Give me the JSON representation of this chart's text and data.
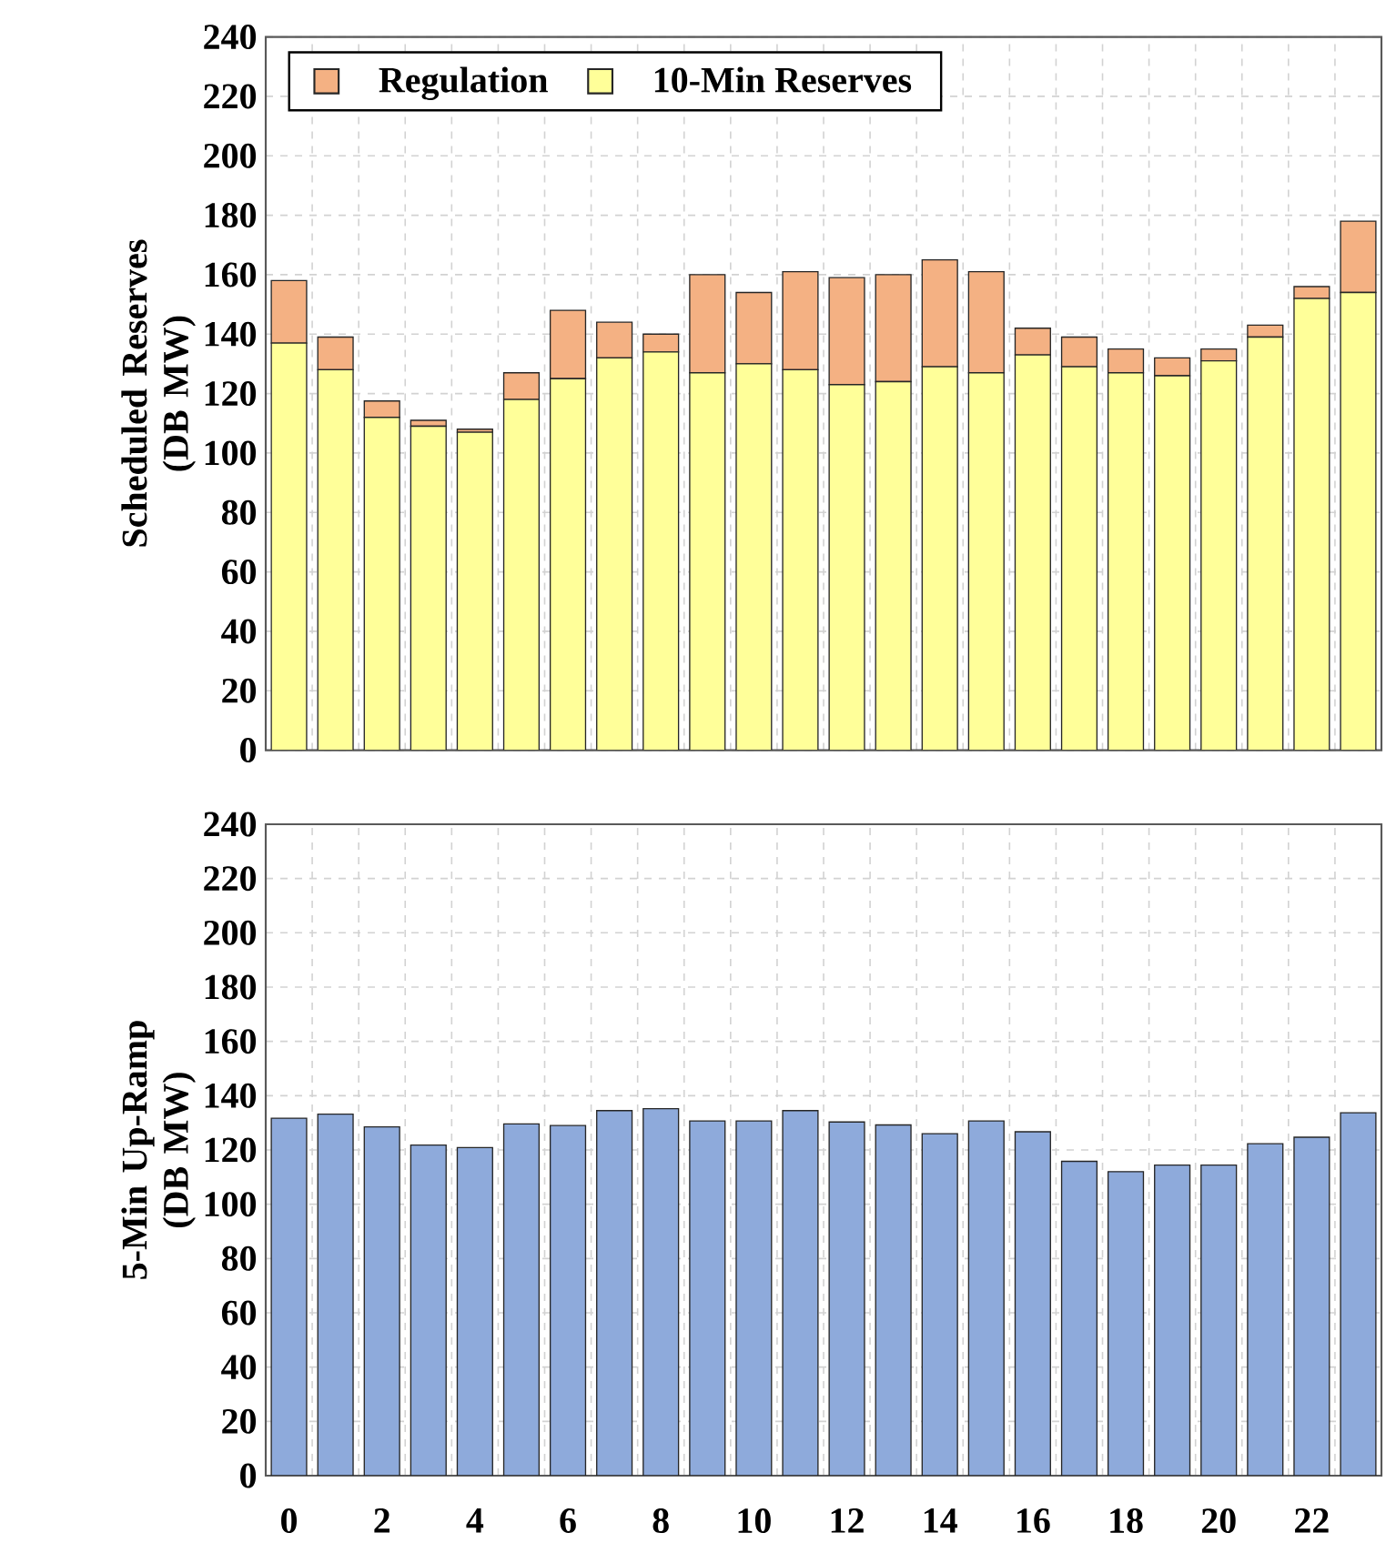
{
  "chart_data": [
    {
      "type": "bar",
      "stacked": true,
      "ylabel": "Scheduled Reserves (DB MW)",
      "categories": [
        "0",
        null,
        "2",
        null,
        "4",
        null,
        "6",
        null,
        "8",
        null,
        "10",
        null,
        "12",
        null,
        "14",
        null,
        "16",
        null,
        "18",
        null,
        "20",
        null,
        "22",
        null
      ],
      "series": [
        {
          "name": "10-Min Reserves",
          "color": "#ffff99",
          "values": [
            137,
            128,
            112,
            109,
            107,
            118,
            125,
            132,
            134,
            127,
            130,
            128,
            123,
            124,
            129,
            127,
            133,
            129,
            127,
            126,
            131,
            139,
            152,
            154
          ]
        },
        {
          "name": "Regulation",
          "color": "#f4b183",
          "values": [
            21,
            11,
            5.5,
            2,
            1,
            9,
            23,
            12,
            6,
            33,
            24,
            33,
            36,
            36,
            36,
            34,
            9,
            10,
            8,
            6,
            4,
            4,
            4,
            24
          ]
        }
      ],
      "ylim": [
        0,
        240
      ],
      "yticks": [
        0,
        20,
        40,
        60,
        80,
        100,
        120,
        140,
        160,
        180,
        200,
        220,
        240
      ],
      "grid": true,
      "legend": "top left",
      "tick_labels": "y"
    },
    {
      "type": "bar",
      "ylabel": "5-Min Up-Ramp (DB MW)",
      "categories": [
        "0",
        null,
        "2",
        null,
        "4",
        null,
        "6",
        null,
        "8",
        null,
        "10",
        null,
        "12",
        null,
        "14",
        null,
        "16",
        null,
        "18",
        null,
        "20",
        null,
        "22",
        null
      ],
      "values": [
        131.7,
        133.2,
        128.5,
        121.8,
        120.9,
        129.6,
        129,
        134.5,
        135.2,
        130.7,
        130.7,
        134.5,
        130.3,
        129.2,
        126,
        130.7,
        126.7,
        115.8,
        112,
        114.4,
        114.4,
        122.3,
        124.7,
        133.7
      ],
      "color": "#8eaadb",
      "ylim": [
        0,
        240
      ],
      "yticks": [
        0,
        20,
        40,
        60,
        80,
        100,
        120,
        140,
        160,
        180,
        200,
        220,
        240
      ],
      "grid": true
    }
  ]
}
